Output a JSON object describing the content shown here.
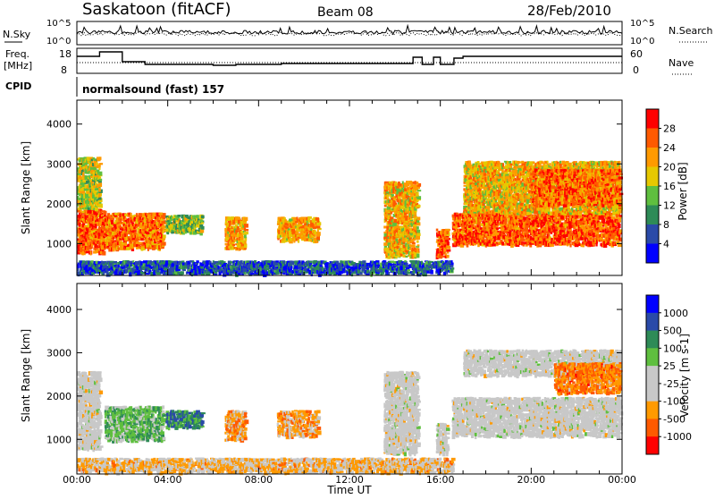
{
  "header": {
    "station": "Saskatoon (fitACF)",
    "beam": "Beam 08",
    "date": "28/Feb/2010"
  },
  "noise_panel": {
    "left_label": "N.Sky",
    "right_label": "N.Search",
    "left_ticks": [
      "10^5",
      "10^0"
    ],
    "right_ticks": [
      "10^5",
      "10^0"
    ]
  },
  "freq_panel": {
    "left_label_line1": "Freq.",
    "left_label_line2": "[MHz]",
    "right_label": "Nave",
    "left_ticks": [
      "18",
      "8"
    ],
    "right_ticks": [
      "60",
      "0"
    ],
    "cpid_label": "CPID",
    "cpid_text": "normalsound (fast) 157"
  },
  "colors": {
    "power_scale": [
      "#0000ff",
      "#2a4aa8",
      "#2e8b57",
      "#5fbf3f",
      "#e6c800",
      "#ff9a00",
      "#ff5a00",
      "#ff0000"
    ],
    "velocity_scale": [
      "#ff0000",
      "#ff5a00",
      "#ff9a00",
      "#c8c8c8",
      "#c8c8c8",
      "#5fbf3f",
      "#2e8b57",
      "#2a4aa8",
      "#0000ff"
    ]
  },
  "chart_data": [
    {
      "type": "heatmap",
      "name": "power",
      "ylabel": "Slant Range [km]",
      "x_ticks": [
        "00:00",
        "04:00",
        "08:00",
        "12:00",
        "16:00",
        "20:00",
        "00:00"
      ],
      "y_ticks": [
        "1000",
        "2000",
        "3000",
        "4000"
      ],
      "ylim": [
        200,
        4600
      ],
      "xlim_hours": [
        0,
        24
      ],
      "colorbar": {
        "label": "Power [dB]",
        "ticks": [
          "4",
          "8",
          "12",
          "16",
          "20",
          "24",
          "28"
        ]
      },
      "regions": [
        {
          "t0": 0.0,
          "t1": 1.2,
          "r0": 800,
          "r1": 1900,
          "level": 0.85
        },
        {
          "t0": 0.0,
          "t1": 1.0,
          "r0": 1900,
          "r1": 3200,
          "level": 0.55
        },
        {
          "t0": 1.2,
          "t1": 3.8,
          "r0": 900,
          "r1": 1800,
          "level": 0.8
        },
        {
          "t0": 3.9,
          "t1": 5.5,
          "r0": 1300,
          "r1": 1750,
          "level": 0.45
        },
        {
          "t0": 6.5,
          "t1": 7.4,
          "r0": 900,
          "r1": 1700,
          "level": 0.7
        },
        {
          "t0": 8.8,
          "t1": 10.6,
          "r0": 1100,
          "r1": 1700,
          "level": 0.7
        },
        {
          "t0": 13.5,
          "t1": 15.0,
          "r0": 700,
          "r1": 2600,
          "level": 0.65
        },
        {
          "t0": 15.8,
          "t1": 16.3,
          "r0": 700,
          "r1": 1400,
          "level": 0.85
        },
        {
          "t0": 16.5,
          "t1": 24.0,
          "r0": 1000,
          "r1": 1800,
          "level": 0.85
        },
        {
          "t0": 17.0,
          "t1": 24.0,
          "r0": 1800,
          "r1": 3100,
          "level": 0.65
        },
        {
          "t0": 20.0,
          "t1": 24.0,
          "r0": 2000,
          "r1": 2900,
          "level": 0.8
        },
        {
          "t0": 0.0,
          "t1": 16.5,
          "r0": 200,
          "r1": 600,
          "level": 0.15
        }
      ]
    },
    {
      "type": "heatmap",
      "name": "velocity",
      "ylabel": "Slant Range [km]",
      "xlabel": "Time UT",
      "x_ticks": [
        "00:00",
        "04:00",
        "08:00",
        "12:00",
        "16:00",
        "20:00",
        "00:00"
      ],
      "y_ticks": [
        "1000",
        "2000",
        "3000",
        "4000"
      ],
      "ylim": [
        200,
        4600
      ],
      "xlim_hours": [
        0,
        24
      ],
      "colorbar": {
        "label": "Velocity [m s-1]",
        "ticks": [
          "1000",
          "500",
          "100",
          "25",
          "-25",
          "-100",
          "-500",
          "-1000"
        ]
      },
      "regions": [
        {
          "t0": 0.0,
          "t1": 1.0,
          "r0": 800,
          "r1": 2600,
          "level": 3.5
        },
        {
          "t0": 1.2,
          "t1": 3.8,
          "r0": 1000,
          "r1": 1800,
          "level": 5.0
        },
        {
          "t0": 3.9,
          "t1": 5.5,
          "r0": 1300,
          "r1": 1700,
          "level": 6.0
        },
        {
          "t0": 6.5,
          "t1": 7.4,
          "r0": 1000,
          "r1": 1700,
          "level": 2.0
        },
        {
          "t0": 8.8,
          "t1": 10.6,
          "r0": 1100,
          "r1": 1700,
          "level": 2.0
        },
        {
          "t0": 13.5,
          "t1": 15.0,
          "r0": 700,
          "r1": 2600,
          "level": 3.5
        },
        {
          "t0": 15.8,
          "t1": 16.3,
          "r0": 700,
          "r1": 1400,
          "level": 3.5
        },
        {
          "t0": 16.5,
          "t1": 24.0,
          "r0": 1100,
          "r1": 2000,
          "level": 3.5
        },
        {
          "t0": 17.0,
          "t1": 24.0,
          "r0": 2500,
          "r1": 3100,
          "level": 3.5
        },
        {
          "t0": 21.0,
          "t1": 24.0,
          "r0": 2100,
          "r1": 2800,
          "level": 1.5
        },
        {
          "t0": 0.0,
          "t1": 16.5,
          "r0": 200,
          "r1": 600,
          "level": 2.5
        }
      ]
    }
  ]
}
